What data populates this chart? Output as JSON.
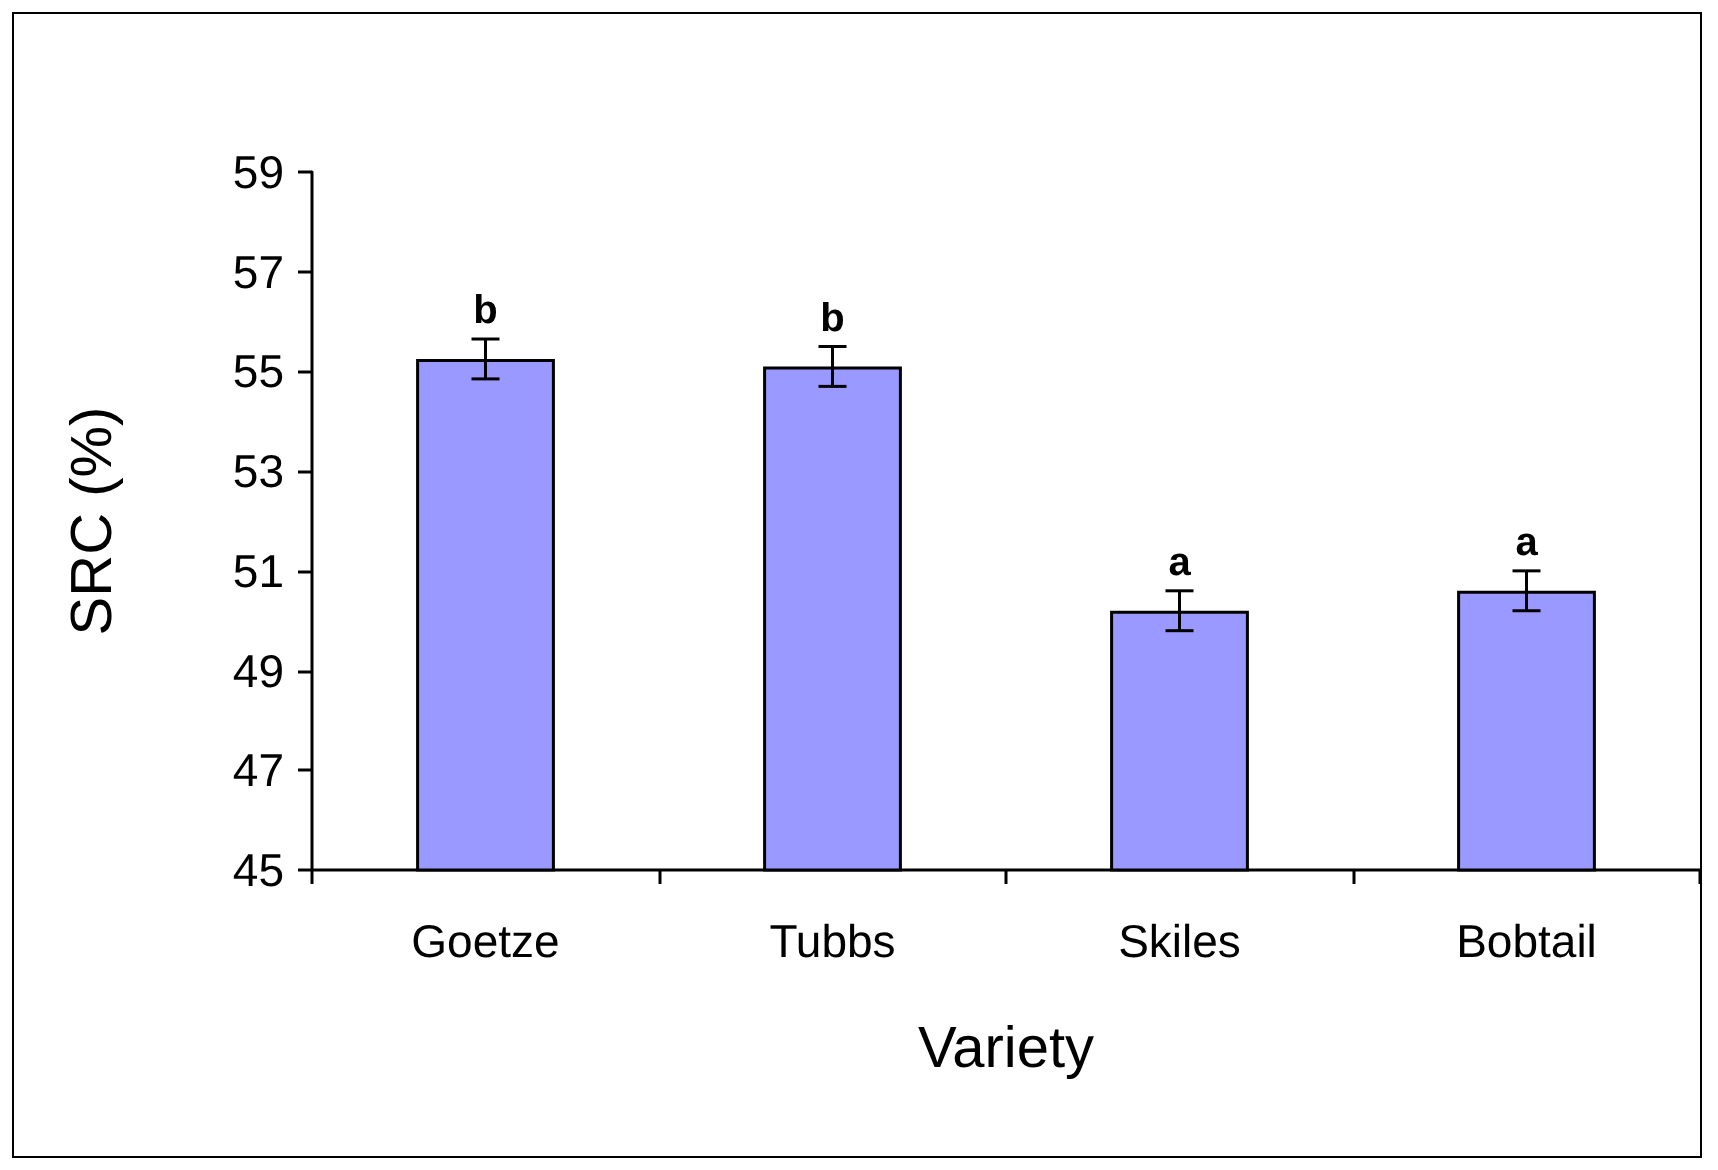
{
  "chart_data": {
    "type": "bar",
    "xlabel": "Variety",
    "ylabel": "SRC (%)",
    "categories": [
      "Goetze",
      "Tubbs",
      "Skiles",
      "Bobtail"
    ],
    "values": [
      55.25,
      55.1,
      50.2,
      50.6
    ],
    "errors": [
      0.4,
      0.4,
      0.4,
      0.4
    ],
    "color": "#9999ff",
    "ylim": [
      45,
      59
    ],
    "yticks": [
      45,
      47,
      49,
      51,
      53,
      55,
      57,
      59
    ],
    "grid": false,
    "annotations": [
      {
        "text": "b",
        "x": "Goetze",
        "y": 55.65
      },
      {
        "text": "b",
        "x": "Tubbs",
        "y": 55.5
      },
      {
        "text": "a",
        "x": "Skiles",
        "y": 50.6
      },
      {
        "text": "a",
        "x": "Bobtail",
        "y": 51.0
      }
    ]
  }
}
